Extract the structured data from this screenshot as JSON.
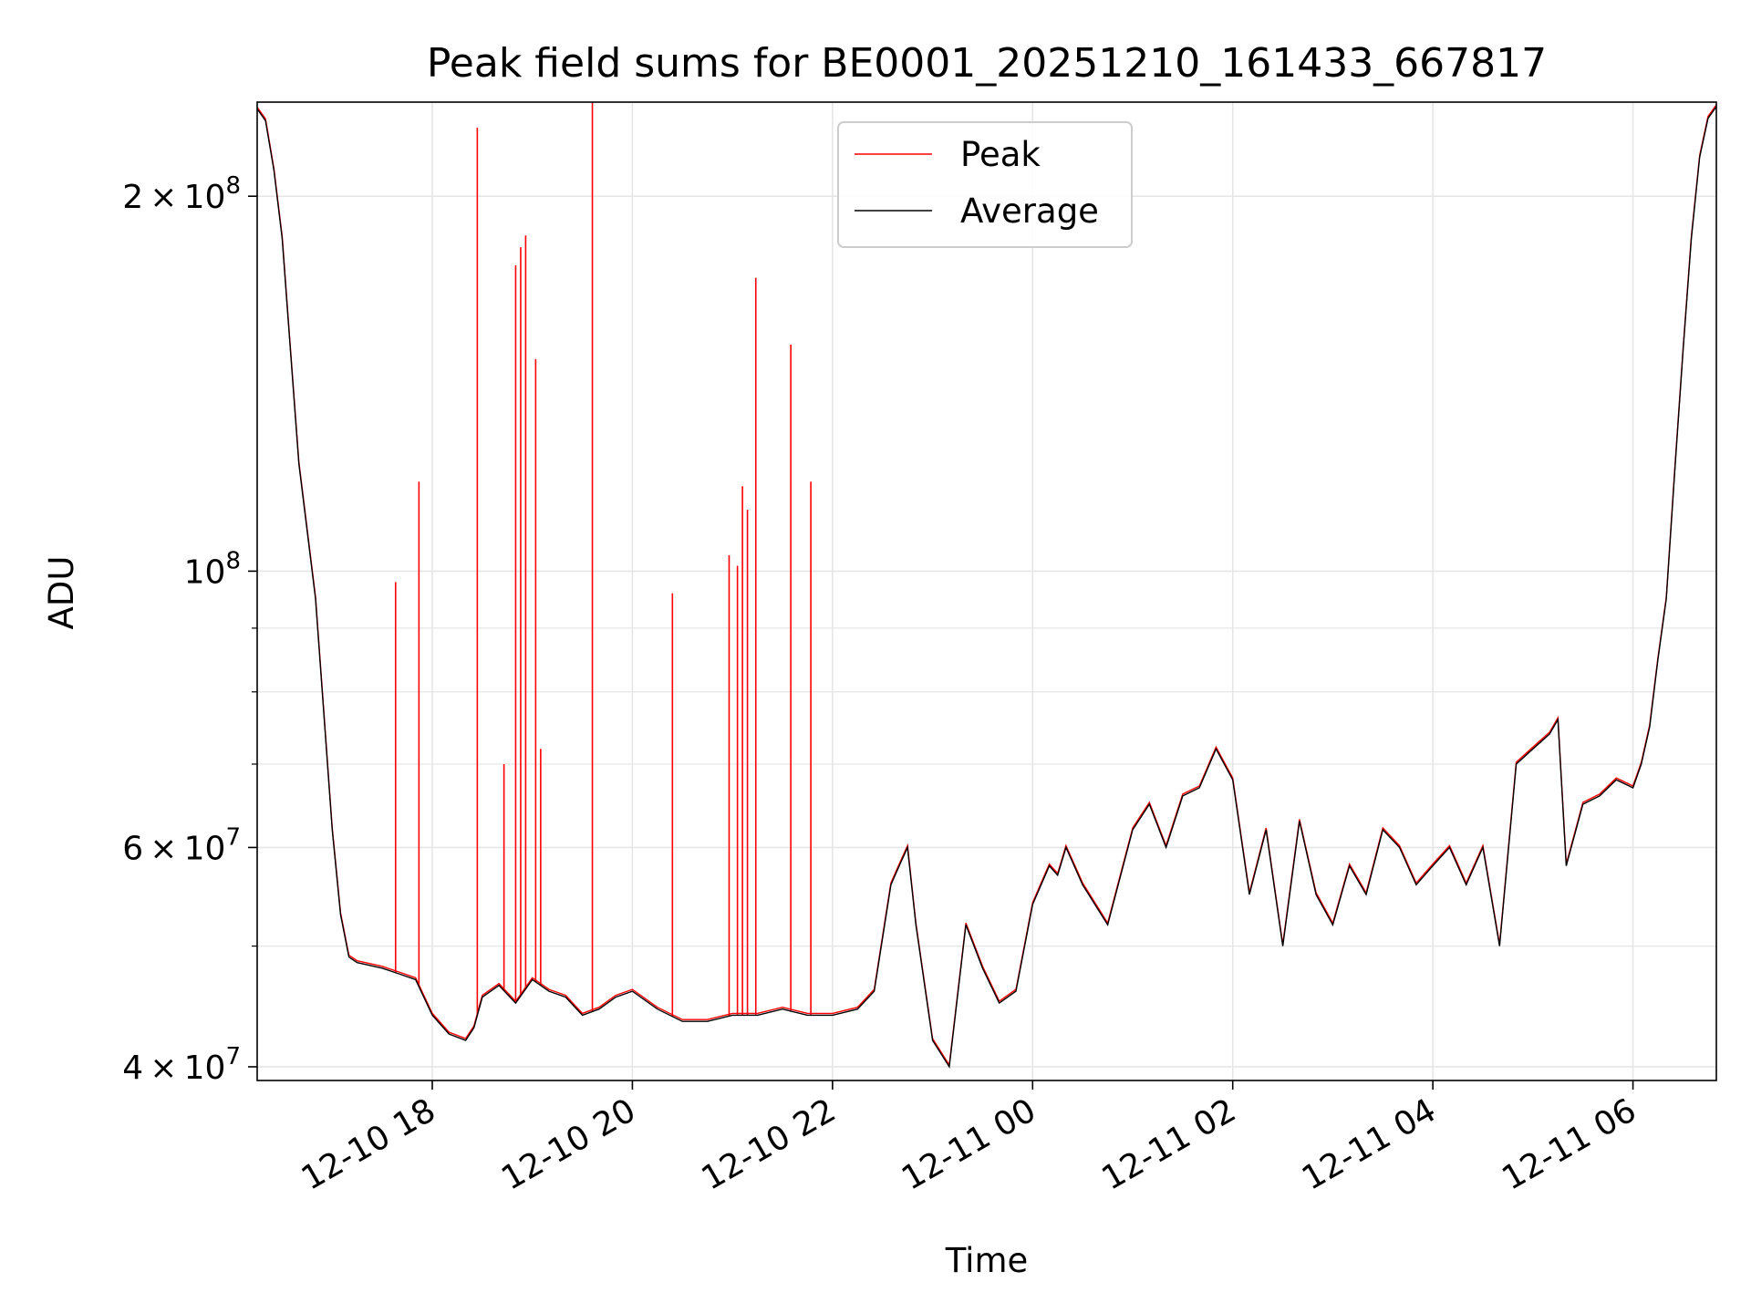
{
  "chart_data": {
    "type": "line",
    "title": "Peak field sums for BE0001_20251210_161433_667817",
    "xlabel": "Time",
    "ylabel": "ADU",
    "yscale": "log",
    "ylim": [
      39000000,
      238000000
    ],
    "xlim": [
      "2025-12-10 16:15",
      "2025-12-11 06:50"
    ],
    "grid": true,
    "legend_position": "upper center",
    "xticks": [
      {
        "t": "2025-12-10 18:00",
        "label": "12-10 18"
      },
      {
        "t": "2025-12-10 20:00",
        "label": "12-10 20"
      },
      {
        "t": "2025-12-10 22:00",
        "label": "12-10 22"
      },
      {
        "t": "2025-12-11 00:00",
        "label": "12-11 00"
      },
      {
        "t": "2025-12-11 02:00",
        "label": "12-11 02"
      },
      {
        "t": "2025-12-11 04:00",
        "label": "12-11 04"
      },
      {
        "t": "2025-12-11 06:00",
        "label": "12-11 06"
      }
    ],
    "yticks_major": [
      {
        "v": 40000000,
        "mantissa": "4",
        "exp": "7"
      },
      {
        "v": 60000000,
        "mantissa": "6",
        "exp": "7"
      },
      {
        "v": 100000000,
        "mantissa": "",
        "exp": "8"
      },
      {
        "v": 200000000,
        "mantissa": "2",
        "exp": "8"
      }
    ],
    "yticks_minor": [
      50000000,
      70000000,
      80000000,
      90000000
    ],
    "series": [
      {
        "name": "Average",
        "color": "#000000",
        "x": [
          "2025-12-10 16:15",
          "2025-12-10 16:20",
          "2025-12-10 16:25",
          "2025-12-10 16:30",
          "2025-12-10 16:35",
          "2025-12-10 16:40",
          "2025-12-10 16:50",
          "2025-12-10 17:00",
          "2025-12-10 17:05",
          "2025-12-10 17:10",
          "2025-12-10 17:15",
          "2025-12-10 17:30",
          "2025-12-10 17:40",
          "2025-12-10 17:50",
          "2025-12-10 18:00",
          "2025-12-10 18:10",
          "2025-12-10 18:20",
          "2025-12-10 18:25",
          "2025-12-10 18:30",
          "2025-12-10 18:40",
          "2025-12-10 18:50",
          "2025-12-10 19:00",
          "2025-12-10 19:10",
          "2025-12-10 19:20",
          "2025-12-10 19:30",
          "2025-12-10 19:40",
          "2025-12-10 19:50",
          "2025-12-10 20:00",
          "2025-12-10 20:15",
          "2025-12-10 20:30",
          "2025-12-10 20:45",
          "2025-12-10 21:00",
          "2025-12-10 21:05",
          "2025-12-10 21:10",
          "2025-12-10 21:15",
          "2025-12-10 21:30",
          "2025-12-10 21:45",
          "2025-12-10 22:00",
          "2025-12-10 22:15",
          "2025-12-10 22:25",
          "2025-12-10 22:35",
          "2025-12-10 22:40",
          "2025-12-10 22:45",
          "2025-12-10 22:50",
          "2025-12-10 23:00",
          "2025-12-10 23:10",
          "2025-12-10 23:20",
          "2025-12-10 23:30",
          "2025-12-10 23:40",
          "2025-12-10 23:50",
          "2025-12-11 00:00",
          "2025-12-11 00:10",
          "2025-12-11 00:15",
          "2025-12-11 00:20",
          "2025-12-11 00:30",
          "2025-12-11 00:45",
          "2025-12-11 01:00",
          "2025-12-11 01:10",
          "2025-12-11 01:20",
          "2025-12-11 01:30",
          "2025-12-11 01:40",
          "2025-12-11 01:50",
          "2025-12-11 02:00",
          "2025-12-11 02:10",
          "2025-12-11 02:20",
          "2025-12-11 02:30",
          "2025-12-11 02:40",
          "2025-12-11 02:50",
          "2025-12-11 03:00",
          "2025-12-11 03:10",
          "2025-12-11 03:20",
          "2025-12-11 03:30",
          "2025-12-11 03:40",
          "2025-12-11 03:50",
          "2025-12-11 04:00",
          "2025-12-11 04:10",
          "2025-12-11 04:20",
          "2025-12-11 04:30",
          "2025-12-11 04:40",
          "2025-12-11 04:50",
          "2025-12-11 05:00",
          "2025-12-11 05:10",
          "2025-12-11 05:15",
          "2025-12-11 05:20",
          "2025-12-11 05:30",
          "2025-12-11 05:40",
          "2025-12-11 05:50",
          "2025-12-11 06:00",
          "2025-12-11 06:05",
          "2025-12-11 06:10",
          "2025-12-11 06:15",
          "2025-12-11 06:20",
          "2025-12-11 06:25",
          "2025-12-11 06:30",
          "2025-12-11 06:35",
          "2025-12-11 06:40",
          "2025-12-11 06:45",
          "2025-12-11 06:50"
        ],
        "y": [
          235000000,
          230000000,
          210000000,
          185000000,
          150000000,
          122000000,
          95000000,
          62000000,
          53000000,
          49000000,
          48500000,
          48000000,
          47500000,
          47000000,
          44000000,
          42500000,
          42000000,
          43000000,
          45500000,
          46500000,
          45000000,
          47000000,
          46000000,
          45500000,
          44000000,
          44500000,
          45500000,
          46000000,
          44500000,
          43500000,
          43500000,
          44000000,
          44000000,
          44000000,
          44000000,
          44500000,
          44000000,
          44000000,
          44500000,
          46000000,
          56000000,
          58000000,
          60000000,
          52000000,
          42000000,
          40000000,
          52000000,
          48000000,
          45000000,
          46000000,
          54000000,
          58000000,
          57000000,
          60000000,
          56000000,
          52000000,
          62000000,
          65000000,
          60000000,
          66000000,
          67000000,
          72000000,
          68000000,
          55000000,
          62000000,
          50000000,
          63000000,
          55000000,
          52000000,
          58000000,
          55000000,
          62000000,
          60000000,
          56000000,
          58000000,
          60000000,
          56000000,
          60000000,
          50000000,
          70000000,
          72000000,
          74000000,
          76000000,
          58000000,
          65000000,
          66000000,
          68000000,
          67000000,
          70000000,
          75000000,
          85000000,
          95000000,
          120000000,
          150000000,
          185000000,
          215000000,
          231000000,
          236000000
        ]
      },
      {
        "name": "Peak",
        "color": "#ff0000",
        "spikes": [
          {
            "t": "2025-12-10 17:38",
            "y": 98000000
          },
          {
            "t": "2025-12-10 17:52",
            "y": 118000000
          },
          {
            "t": "2025-12-10 18:27",
            "y": 227000000
          },
          {
            "t": "2025-12-10 18:43",
            "y": 70000000
          },
          {
            "t": "2025-12-10 18:50",
            "y": 176000000
          },
          {
            "t": "2025-12-10 18:53",
            "y": 182000000
          },
          {
            "t": "2025-12-10 18:56",
            "y": 186000000
          },
          {
            "t": "2025-12-10 19:02",
            "y": 148000000
          },
          {
            "t": "2025-12-10 19:05",
            "y": 72000000
          },
          {
            "t": "2025-12-10 19:36",
            "y": 238000000
          },
          {
            "t": "2025-12-10 20:24",
            "y": 96000000
          },
          {
            "t": "2025-12-10 20:58",
            "y": 103000000
          },
          {
            "t": "2025-12-10 21:03",
            "y": 101000000
          },
          {
            "t": "2025-12-10 21:06",
            "y": 117000000
          },
          {
            "t": "2025-12-10 21:09",
            "y": 112000000
          },
          {
            "t": "2025-12-10 21:14",
            "y": 172000000
          },
          {
            "t": "2025-12-10 21:35",
            "y": 152000000
          },
          {
            "t": "2025-12-10 21:47",
            "y": 118000000
          }
        ]
      }
    ]
  }
}
